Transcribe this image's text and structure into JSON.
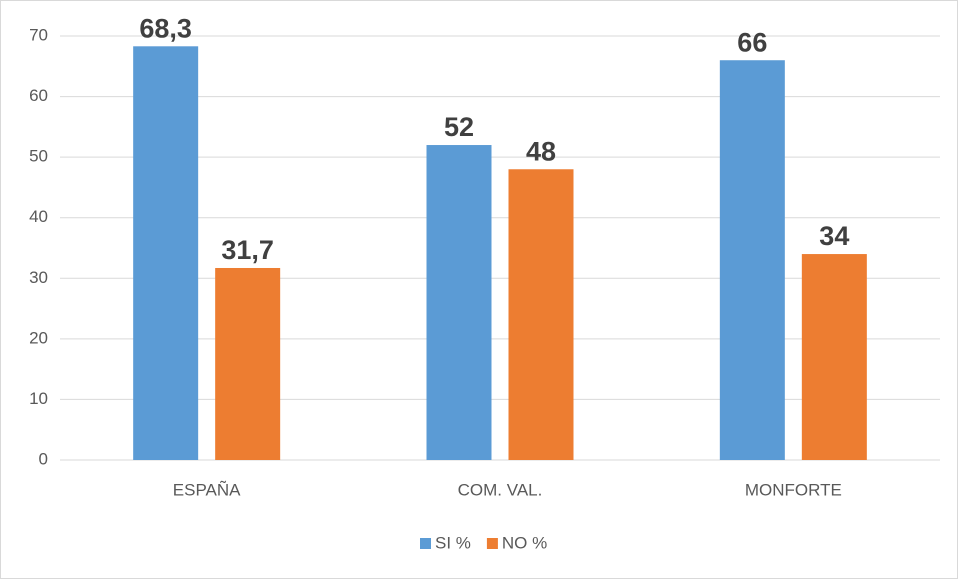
{
  "chart_data": {
    "type": "bar",
    "categories": [
      "ESPAÑA",
      "COM. VAL.",
      "MONFORTE"
    ],
    "series": [
      {
        "name": "SI %",
        "color": "#5b9bd5",
        "values": [
          68.3,
          52,
          66
        ],
        "value_labels": [
          "68,3",
          "52",
          "66"
        ]
      },
      {
        "name": "NO %",
        "color": "#ed7d31",
        "values": [
          31.7,
          48,
          34
        ],
        "value_labels": [
          "31,7",
          "48",
          "34"
        ]
      }
    ],
    "ylim": [
      0,
      70
    ],
    "yticks": [
      0,
      10,
      20,
      30,
      40,
      50,
      60,
      70
    ],
    "grid": true,
    "legend": "bottom"
  }
}
